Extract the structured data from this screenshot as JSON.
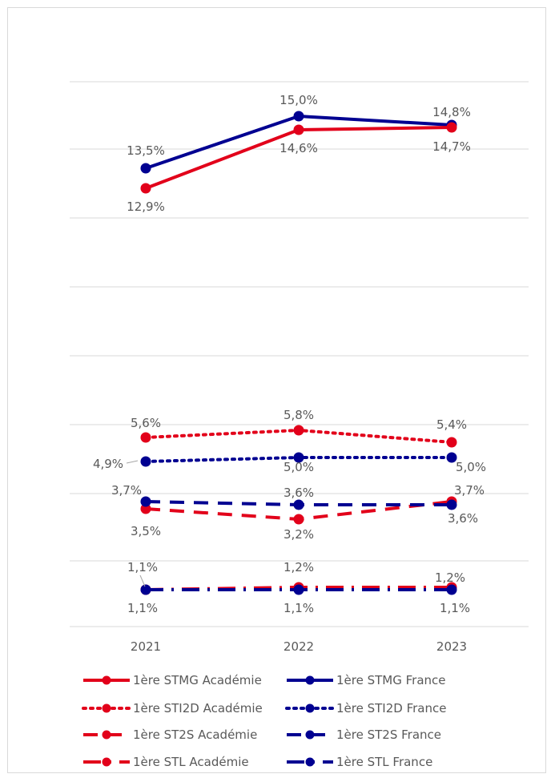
{
  "chart_data": {
    "type": "line",
    "title": "",
    "xlabel": "",
    "ylabel": "",
    "categories": [
      "2021",
      "2022",
      "2023"
    ],
    "grid": true,
    "legend_position": "bottom",
    "series": [
      {
        "name": "1ère STMG Académie",
        "values": [
          12.9,
          14.6,
          14.7
        ],
        "labels": [
          "12,9%",
          "14,6%",
          "14,7%"
        ],
        "color": "#e2001a",
        "style": "solid"
      },
      {
        "name": "1ère STMG France",
        "values": [
          13.5,
          15.0,
          14.8
        ],
        "labels": [
          "13,5%",
          "15,0%",
          "14,8%"
        ],
        "color": "#000091",
        "style": "solid"
      },
      {
        "name": "1ère STI2D Académie",
        "values": [
          5.6,
          5.8,
          5.4
        ],
        "labels": [
          "5,6%",
          "5,8%",
          "5,4%"
        ],
        "color": "#e2001a",
        "style": "dotted"
      },
      {
        "name": "1ère STI2D France",
        "values": [
          4.9,
          5.0,
          5.0
        ],
        "labels": [
          "4,9%",
          "5,0%",
          "5,0%"
        ],
        "color": "#000091",
        "style": "dotted"
      },
      {
        "name": "1ère ST2S Académie",
        "values": [
          3.5,
          3.2,
          3.7
        ],
        "labels": [
          "3,5%",
          "3,2%",
          "3,7%"
        ],
        "color": "#e2001a",
        "style": "dashed"
      },
      {
        "name": "1ère ST2S France",
        "values": [
          3.7,
          3.6,
          3.6
        ],
        "labels": [
          "3,7%",
          "3,6%",
          "3,6%"
        ],
        "color": "#000091",
        "style": "dashed"
      },
      {
        "name": "1ère STL Académie",
        "values": [
          1.1,
          1.2,
          1.2
        ],
        "labels": [
          "1,1%",
          "1,2%",
          "1,2%"
        ],
        "color": "#e2001a",
        "style": "dashdot"
      },
      {
        "name": "1ère STL France",
        "values": [
          1.1,
          1.1,
          1.1
        ],
        "labels": [
          "1,1%",
          "1,1%",
          "1,1%"
        ],
        "color": "#000091",
        "style": "dashdot"
      }
    ]
  }
}
